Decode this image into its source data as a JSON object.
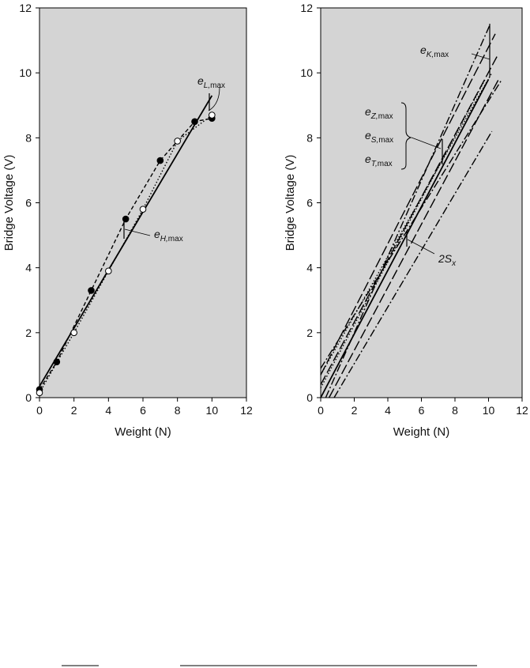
{
  "chart_data": [
    {
      "type": "line",
      "xlabel": "Weight (N)",
      "ylabel": "Bridge Voltage (V)",
      "xlim": [
        0,
        12
      ],
      "ylim": [
        0,
        12
      ],
      "xticks": [
        "0",
        "2",
        "4",
        "6",
        "8",
        "10",
        "12"
      ],
      "yticks": [
        "0",
        "2",
        "4",
        "6",
        "8",
        "10",
        "12"
      ],
      "grid": false,
      "background": "#d4d4d4",
      "series": [
        {
          "style": "solid",
          "x": [
            0,
            10
          ],
          "y": [
            0.35,
            9.3
          ]
        },
        {
          "style": "dashed",
          "marker": "filled-circle",
          "x": [
            0,
            1,
            3,
            5,
            7,
            9,
            10
          ],
          "y": [
            0.25,
            1.1,
            3.3,
            5.5,
            7.3,
            8.5,
            8.6
          ]
        },
        {
          "style": "dotted",
          "marker": "open-circle",
          "x": [
            0,
            2,
            4,
            6,
            8,
            10
          ],
          "y": [
            0.15,
            2.0,
            3.9,
            5.8,
            7.9,
            8.7
          ]
        }
      ],
      "annotations": [
        {
          "main": "e",
          "sub": "L,",
          "subr": "max"
        },
        {
          "main": "e",
          "sub": "H,",
          "subr": "max"
        }
      ]
    },
    {
      "type": "line",
      "xlabel": "Weight (N)",
      "ylabel": "Bridge Voltage (V)",
      "xlim": [
        0,
        12
      ],
      "ylim": [
        0,
        12
      ],
      "xticks": [
        "0",
        "2",
        "4",
        "6",
        "8",
        "10",
        "12"
      ],
      "yticks": [
        "0",
        "2",
        "4",
        "6",
        "8",
        "10",
        "12"
      ],
      "grid": false,
      "background": "#d4d4d4",
      "series": [
        {
          "style": "solid",
          "x": [
            0,
            10
          ],
          "y": [
            0,
            9.8
          ]
        },
        {
          "style": "dotted",
          "x": [
            0,
            9.8
          ],
          "y": [
            0.3,
            9.8
          ]
        },
        {
          "style": "dotted",
          "x": [
            0,
            10.2
          ],
          "y": [
            0.7,
            10.0
          ]
        },
        {
          "style": "dashdot",
          "x": [
            0.3,
            10.1
          ],
          "y": [
            0,
            11.5
          ]
        },
        {
          "style": "longdash",
          "x": [
            0,
            10.4
          ],
          "y": [
            0.7,
            11.2
          ]
        },
        {
          "style": "longdash",
          "x": [
            0,
            10.5
          ],
          "y": [
            0.4,
            10.5
          ]
        },
        {
          "style": "longdash",
          "x": [
            0.5,
            10.6
          ],
          "y": [
            0,
            9.8
          ]
        },
        {
          "style": "dashdot",
          "x": [
            0,
            10.8
          ],
          "y": [
            0.9,
            9.8
          ]
        },
        {
          "style": "dashdot",
          "x": [
            0.8,
            10.2
          ],
          "y": [
            0,
            8.2
          ]
        }
      ],
      "annotations": [
        {
          "main": "e",
          "sub": "K,",
          "subr": "max"
        },
        {
          "main": "e",
          "sub": "Z,",
          "subr": "max"
        },
        {
          "main": "e",
          "sub": "S,",
          "subr": "max"
        },
        {
          "main": "e",
          "sub": "T,",
          "subr": "max"
        },
        {
          "main": "2S",
          "sub": "x",
          "subr": ""
        }
      ]
    }
  ]
}
